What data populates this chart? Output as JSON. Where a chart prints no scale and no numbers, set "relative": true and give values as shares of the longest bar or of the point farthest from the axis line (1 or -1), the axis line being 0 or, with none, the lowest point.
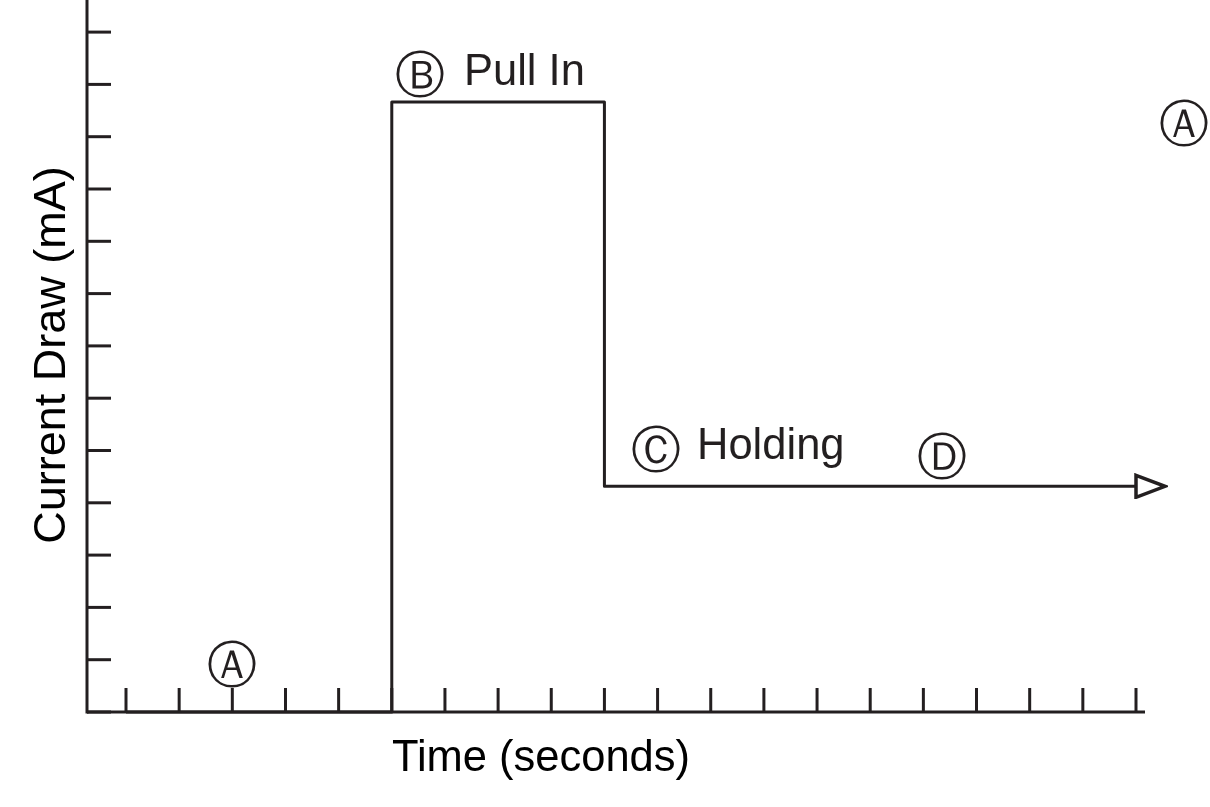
{
  "chart_data": {
    "type": "step",
    "xlabel": "Time (seconds)",
    "ylabel": "Current Draw (mA)",
    "relative": true,
    "categories": [
      null,
      null,
      null,
      null,
      null,
      null,
      null,
      null,
      null,
      null,
      null,
      null,
      null,
      null,
      null,
      null,
      null,
      null,
      null,
      null
    ],
    "values": [
      0,
      0,
      0,
      0,
      0,
      1,
      1,
      1,
      1,
      0.37,
      0.37,
      0.37,
      0.37,
      0.37,
      0.37,
      0.37,
      0.37,
      0.37,
      0.37,
      0.37
    ],
    "color": "#231f20",
    "annotations": [
      "Ⓐ",
      "Ⓑ",
      "Pull In",
      "Ⓒ",
      "Holding",
      "Ⓓ",
      "Ⓐ"
    ]
  }
}
